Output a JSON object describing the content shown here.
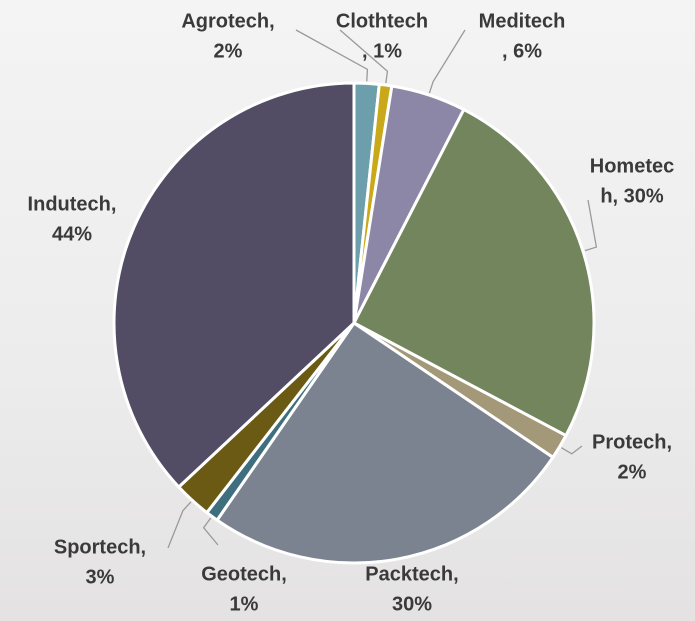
{
  "chart_data": {
    "type": "pie",
    "categories": [
      "Agrotech",
      "Clothtech",
      "Meditech",
      "Hometech",
      "Protech",
      "Packtech",
      "Geotech",
      "Sportech",
      "Indutech"
    ],
    "values": [
      2,
      1,
      6,
      30,
      2,
      30,
      1,
      3,
      44
    ],
    "value_labels": [
      [
        "Agrotech,",
        "2%"
      ],
      [
        "Clothtech",
        ", 1%"
      ],
      [
        "Meditech",
        ", 6%"
      ],
      [
        "Hometec",
        "h, 30%"
      ],
      [
        "Protech,",
        "2%"
      ],
      [
        "Packtech,",
        "30%"
      ],
      [
        "Geotech,",
        "1%"
      ],
      [
        "Sportech,",
        "3%"
      ],
      [
        "Indutech,",
        "44%"
      ]
    ],
    "colors": [
      "#6d9eab",
      "#c9a81a",
      "#8c87a6",
      "#72855c",
      "#a39877",
      "#7b8390",
      "#3f6e7f",
      "#6b5a14",
      "#524c64"
    ]
  }
}
